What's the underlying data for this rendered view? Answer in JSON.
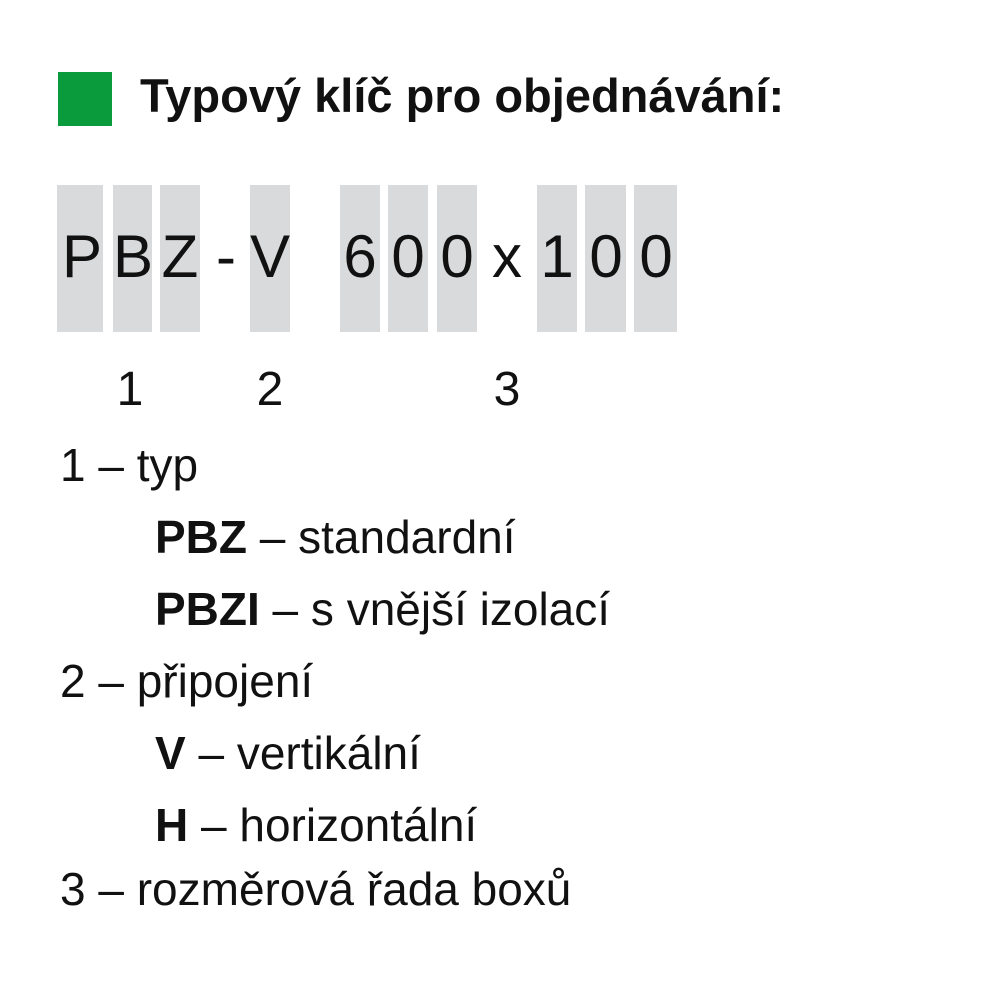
{
  "heading": {
    "title": "Typový klíč pro objednávání:",
    "marker_color": "#0a9b3c"
  },
  "code": {
    "chars": [
      "P",
      "B",
      "Z",
      "-",
      "V",
      "6",
      "0",
      "0",
      "x",
      "1",
      "0",
      "0"
    ]
  },
  "positions": [
    "1",
    "2",
    "3"
  ],
  "legend": [
    {
      "text": "1 – typ"
    },
    {
      "code": "PBZ",
      "text": " – standardní"
    },
    {
      "code": "PBZI",
      "text": " – s vnější izolací"
    },
    {
      "text": "2 – připojení"
    },
    {
      "code": "V",
      "text": " – vertikální"
    },
    {
      "code": "H",
      "text": " – horizontální"
    },
    {
      "text": "3 – rozměrová řada boxů"
    }
  ]
}
